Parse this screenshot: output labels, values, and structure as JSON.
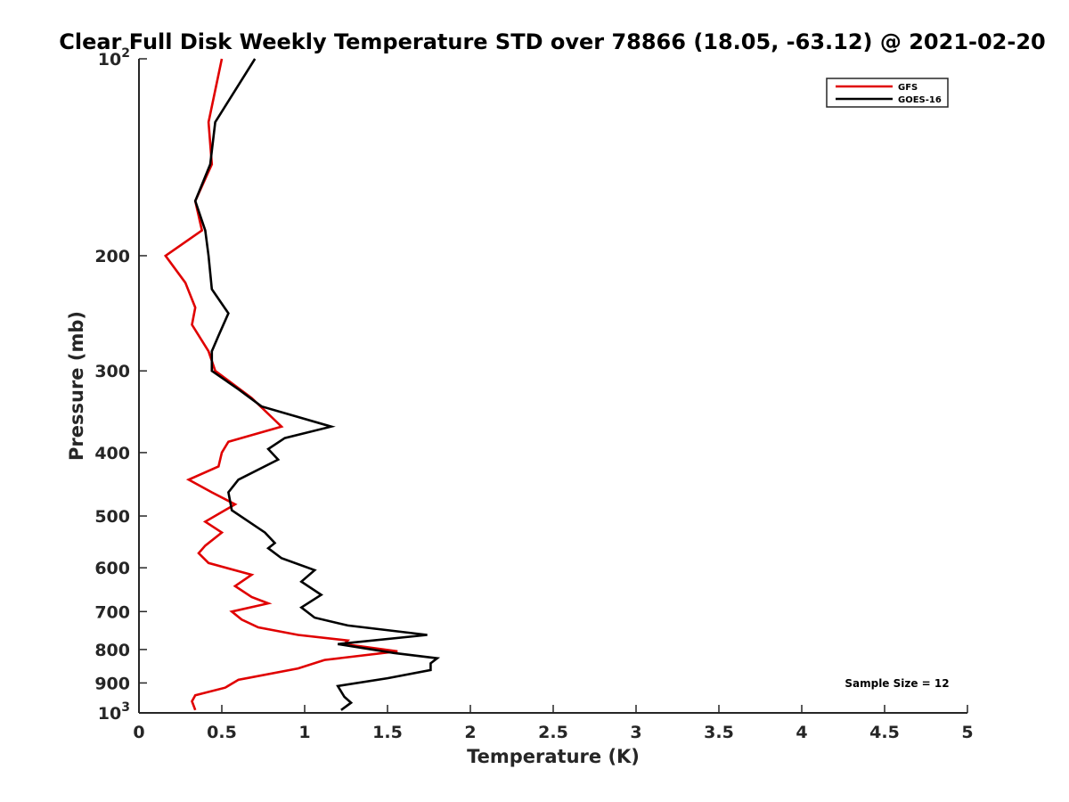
{
  "chart_data": {
    "type": "line",
    "title": "Clear Full Disk Weekly Temperature STD over 78866 (18.05, -63.12) @ 2021-02-20",
    "xlabel": "Temperature (K)",
    "ylabel": "Pressure (mb)",
    "xlim": [
      0,
      5
    ],
    "ylim": [
      100,
      1000
    ],
    "y_scale": "log",
    "y_reversed": true,
    "x_ticks": [
      "0",
      "0.5",
      "1",
      "1.5",
      "2",
      "2.5",
      "3",
      "3.5",
      "4",
      "4.5",
      "5"
    ],
    "x_tick_values": [
      0,
      0.5,
      1,
      1.5,
      2,
      2.5,
      3,
      3.5,
      4,
      4.5,
      5
    ],
    "y_ticks": [
      {
        "value": 100,
        "label": "10",
        "sup": "2"
      },
      {
        "value": 200,
        "label": "200",
        "sup": ""
      },
      {
        "value": 300,
        "label": "300",
        "sup": ""
      },
      {
        "value": 400,
        "label": "400",
        "sup": ""
      },
      {
        "value": 500,
        "label": "500",
        "sup": ""
      },
      {
        "value": 600,
        "label": "600",
        "sup": ""
      },
      {
        "value": 700,
        "label": "700",
        "sup": ""
      },
      {
        "value": 800,
        "label": "800",
        "sup": ""
      },
      {
        "value": 900,
        "label": "900",
        "sup": ""
      },
      {
        "value": 1000,
        "label": "10",
        "sup": "3"
      }
    ],
    "grid": false,
    "legend_position": "top-right",
    "annotation": "Sample Size = 12",
    "series": [
      {
        "name": "GFS",
        "color": "#e00000",
        "points": [
          [
            0.5,
            100
          ],
          [
            0.42,
            125
          ],
          [
            0.44,
            145
          ],
          [
            0.34,
            165
          ],
          [
            0.38,
            183
          ],
          [
            0.16,
            200
          ],
          [
            0.28,
            220
          ],
          [
            0.34,
            240
          ],
          [
            0.32,
            255
          ],
          [
            0.42,
            280
          ],
          [
            0.46,
            300
          ],
          [
            0.68,
            330
          ],
          [
            0.86,
            365
          ],
          [
            0.54,
            385
          ],
          [
            0.5,
            400
          ],
          [
            0.48,
            420
          ],
          [
            0.3,
            440
          ],
          [
            0.44,
            460
          ],
          [
            0.58,
            480
          ],
          [
            0.4,
            510
          ],
          [
            0.5,
            530
          ],
          [
            0.4,
            555
          ],
          [
            0.36,
            570
          ],
          [
            0.42,
            590
          ],
          [
            0.68,
            615
          ],
          [
            0.58,
            640
          ],
          [
            0.68,
            665
          ],
          [
            0.78,
            680
          ],
          [
            0.56,
            700
          ],
          [
            0.62,
            720
          ],
          [
            0.72,
            740
          ],
          [
            0.96,
            760
          ],
          [
            1.26,
            775
          ],
          [
            1.24,
            785
          ],
          [
            1.56,
            805
          ],
          [
            1.12,
            830
          ],
          [
            0.96,
            855
          ],
          [
            0.6,
            890
          ],
          [
            0.52,
            915
          ],
          [
            0.34,
            940
          ],
          [
            0.32,
            960
          ],
          [
            0.34,
            990
          ]
        ]
      },
      {
        "name": "GOES-16",
        "color": "#000000",
        "points": [
          [
            0.7,
            100
          ],
          [
            0.46,
            125
          ],
          [
            0.43,
            145
          ],
          [
            0.34,
            165
          ],
          [
            0.4,
            183
          ],
          [
            0.42,
            200
          ],
          [
            0.44,
            225
          ],
          [
            0.54,
            245
          ],
          [
            0.48,
            265
          ],
          [
            0.44,
            280
          ],
          [
            0.44,
            300
          ],
          [
            0.6,
            320
          ],
          [
            0.74,
            340
          ],
          [
            1.16,
            365
          ],
          [
            0.88,
            380
          ],
          [
            0.78,
            395
          ],
          [
            0.84,
            410
          ],
          [
            0.6,
            440
          ],
          [
            0.54,
            460
          ],
          [
            0.56,
            490
          ],
          [
            0.76,
            530
          ],
          [
            0.82,
            550
          ],
          [
            0.78,
            560
          ],
          [
            0.86,
            580
          ],
          [
            1.06,
            605
          ],
          [
            0.98,
            630
          ],
          [
            1.1,
            660
          ],
          [
            0.98,
            690
          ],
          [
            1.06,
            715
          ],
          [
            1.26,
            735
          ],
          [
            1.74,
            760
          ],
          [
            1.2,
            785
          ],
          [
            1.54,
            810
          ],
          [
            1.8,
            825
          ],
          [
            1.76,
            840
          ],
          [
            1.76,
            860
          ],
          [
            1.5,
            885
          ],
          [
            1.2,
            910
          ],
          [
            1.24,
            945
          ],
          [
            1.28,
            965
          ],
          [
            1.22,
            990
          ]
        ]
      }
    ]
  }
}
